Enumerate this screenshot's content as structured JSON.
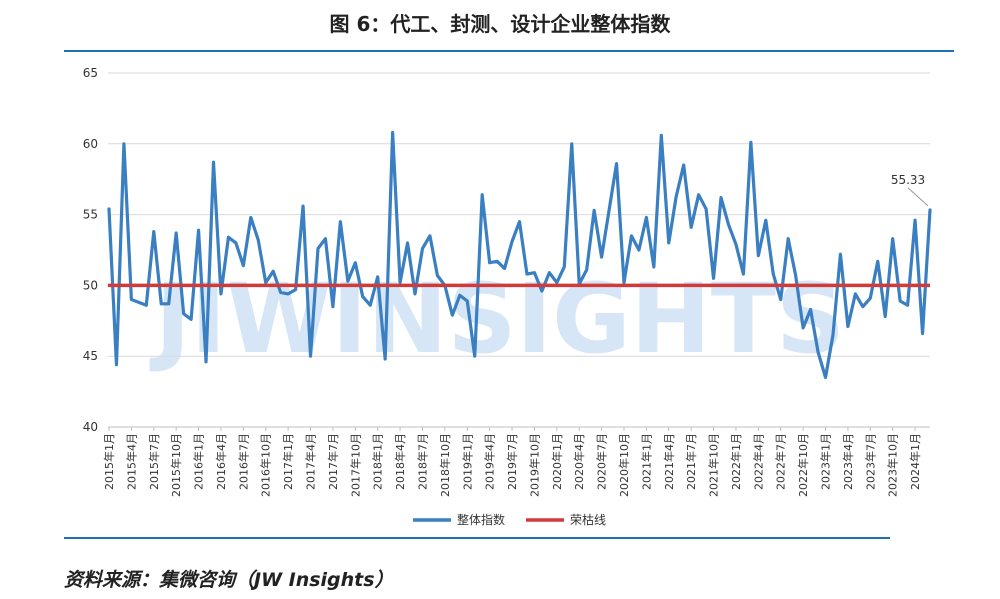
{
  "title": "图 6：代工、封测、设计企业整体指数",
  "source": "资料来源：集微咨询（JW Insights）",
  "watermark": "JIWINSIGHTS",
  "chart_data": {
    "type": "line",
    "ylim": [
      40,
      65
    ],
    "yticks": [
      40,
      45,
      50,
      55,
      60,
      65
    ],
    "grid": true,
    "legend_position": "bottom",
    "x": [
      "2015年1月",
      "2015年2月",
      "2015年3月",
      "2015年4月",
      "2015年5月",
      "2015年6月",
      "2015年7月",
      "2015年8月",
      "2015年9月",
      "2015年10月",
      "2015年11月",
      "2015年12月",
      "2016年1月",
      "2016年2月",
      "2016年3月",
      "2016年4月",
      "2016年5月",
      "2016年6月",
      "2016年7月",
      "2016年8月",
      "2016年9月",
      "2016年10月",
      "2016年11月",
      "2016年12月",
      "2017年1月",
      "2017年2月",
      "2017年3月",
      "2017年4月",
      "2017年5月",
      "2017年6月",
      "2017年7月",
      "2017年8月",
      "2017年9月",
      "2017年10月",
      "2017年11月",
      "2017年12月",
      "2018年1月",
      "2018年2月",
      "2018年3月",
      "2018年4月",
      "2018年5月",
      "2018年6月",
      "2018年7月",
      "2018年8月",
      "2018年9月",
      "2018年10月",
      "2018年11月",
      "2018年12月",
      "2019年1月",
      "2019年2月",
      "2019年3月",
      "2019年4月",
      "2019年5月",
      "2019年6月",
      "2019年7月",
      "2019年8月",
      "2019年9月",
      "2019年10月",
      "2019年11月",
      "2019年12月",
      "2020年1月",
      "2020年2月",
      "2020年3月",
      "2020年4月",
      "2020年5月",
      "2020年6月",
      "2020年7月",
      "2020年8月",
      "2020年9月",
      "2020年10月",
      "2020年11月",
      "2020年12月",
      "2021年1月",
      "2021年2月",
      "2021年3月",
      "2021年4月",
      "2021年5月",
      "2021年6月",
      "2021年7月",
      "2021年8月",
      "2021年9月",
      "2021年10月",
      "2021年11月",
      "2021年12月",
      "2022年1月",
      "2022年2月",
      "2022年3月",
      "2022年4月",
      "2022年5月",
      "2022年6月",
      "2022年7月",
      "2022年8月",
      "2022年9月",
      "2022年10月",
      "2022年11月",
      "2022年12月",
      "2023年1月",
      "2023年2月",
      "2023年3月",
      "2023年4月",
      "2023年5月",
      "2023年6月",
      "2023年7月",
      "2023年8月",
      "2023年9月",
      "2023年10月",
      "2023年11月",
      "2023年12月",
      "2024年1月",
      "2024年2月",
      "2024年3月"
    ],
    "xtick_labels": [
      "2015年1月",
      "2015年4月",
      "2015年7月",
      "2015年10月",
      "2016年1月",
      "2016年4月",
      "2016年7月",
      "2016年10月",
      "2017年1月",
      "2017年4月",
      "2017年7月",
      "2017年10月",
      "2018年1月",
      "2018年4月",
      "2018年7月",
      "2018年10月",
      "2019年1月",
      "2019年4月",
      "2019年7月",
      "2019年10月",
      "2020年1月",
      "2020年4月",
      "2020年7月",
      "2020年10月",
      "2021年1月",
      "2021年4月",
      "2021年7月",
      "2021年10月",
      "2022年1月",
      "2022年4月",
      "2022年7月",
      "2022年10月",
      "2023年1月",
      "2023年4月",
      "2023年7月",
      "2023年10月",
      "2024年1月"
    ],
    "series": [
      {
        "name": "整体指数",
        "color": "#3a7fc1",
        "values": [
          55.4,
          44.4,
          60.0,
          49.0,
          48.8,
          48.6,
          53.8,
          48.7,
          48.7,
          53.7,
          48.0,
          47.6,
          53.9,
          44.6,
          58.7,
          49.4,
          53.4,
          53.0,
          51.4,
          54.8,
          53.2,
          50.2,
          51.0,
          49.5,
          49.4,
          49.7,
          55.6,
          45.0,
          52.6,
          53.3,
          48.5,
          54.5,
          50.3,
          51.6,
          49.2,
          48.6,
          50.6,
          44.8,
          60.8,
          50.2,
          53.0,
          49.4,
          52.6,
          53.5,
          50.7,
          50.0,
          47.9,
          49.3,
          48.9,
          45.0,
          56.4,
          51.6,
          51.7,
          51.2,
          53.1,
          54.5,
          50.8,
          50.9,
          49.6,
          50.9,
          50.2,
          51.3,
          60.0,
          50.1,
          51.1,
          55.3,
          52.0,
          55.3,
          58.6,
          50.2,
          53.5,
          52.5,
          54.8,
          51.3,
          60.6,
          53.0,
          56.3,
          58.5,
          54.1,
          56.4,
          55.4,
          50.5,
          56.2,
          54.3,
          52.9,
          50.8,
          60.1,
          52.1,
          54.6,
          50.8,
          49.0,
          53.3,
          50.7,
          47.0,
          48.3,
          45.3,
          43.5,
          46.5,
          52.2,
          47.1,
          49.4,
          48.5,
          49.1,
          51.7,
          47.8,
          53.3,
          48.9,
          48.6,
          54.6,
          46.6,
          55.33
        ]
      },
      {
        "name": "荣枯线",
        "color": "#d23a3a",
        "constant": 50
      }
    ],
    "annotations": [
      {
        "text": "55.33",
        "index": 110
      }
    ]
  }
}
